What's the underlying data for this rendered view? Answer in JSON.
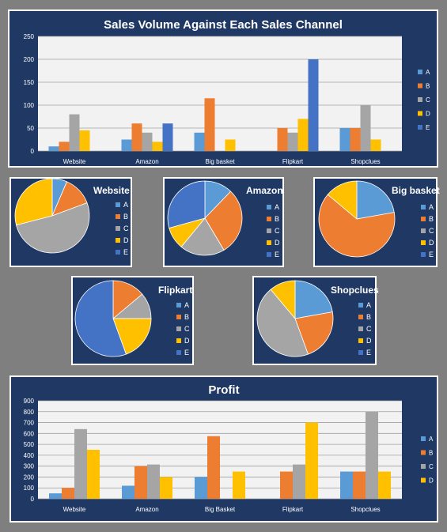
{
  "series_colors": {
    "A": "#5b9bd5",
    "B": "#ed7d31",
    "C": "#a5a5a5",
    "D": "#ffc000",
    "E": "#4472c4"
  },
  "chart_data": [
    {
      "type": "bar",
      "title": "Sales Volume Against Each Sales Channel",
      "categories": [
        "Website",
        "Amazon",
        "Big basket",
        "Flipkart",
        "Shopclues"
      ],
      "ylim": [
        0,
        250
      ],
      "yticks": [
        0,
        50,
        100,
        150,
        200,
        250
      ],
      "grid": true,
      "legend": "right",
      "series": [
        {
          "name": "A",
          "values": [
            10,
            25,
            40,
            0,
            50
          ]
        },
        {
          "name": "B",
          "values": [
            20,
            60,
            115,
            50,
            50
          ]
        },
        {
          "name": "C",
          "values": [
            80,
            40,
            0,
            40,
            100
          ]
        },
        {
          "name": "D",
          "values": [
            45,
            20,
            25,
            70,
            25
          ]
        },
        {
          "name": "E",
          "values": [
            0,
            60,
            0,
            200,
            0
          ]
        }
      ]
    },
    {
      "type": "pie",
      "title": "Website",
      "labels": [
        "A",
        "B",
        "C",
        "D",
        "E"
      ],
      "values": [
        10,
        20,
        80,
        45,
        0
      ],
      "legend": "right"
    },
    {
      "type": "pie",
      "title": "Amazon",
      "labels": [
        "A",
        "B",
        "C",
        "D",
        "E"
      ],
      "values": [
        25,
        60,
        40,
        20,
        60
      ],
      "legend": "right"
    },
    {
      "type": "pie",
      "title": "Big basket",
      "labels": [
        "A",
        "B",
        "C",
        "D",
        "E"
      ],
      "values": [
        40,
        115,
        0,
        25,
        0
      ],
      "legend": "right"
    },
    {
      "type": "pie",
      "title": "Flipkart",
      "labels": [
        "A",
        "B",
        "C",
        "D",
        "E"
      ],
      "values": [
        0,
        50,
        40,
        70,
        200
      ],
      "legend": "right"
    },
    {
      "type": "pie",
      "title": "Shopclues",
      "labels": [
        "A",
        "B",
        "C",
        "D",
        "E"
      ],
      "values": [
        50,
        50,
        100,
        25,
        0
      ],
      "legend": "right"
    },
    {
      "type": "bar",
      "title": "Profit",
      "categories": [
        "Website",
        "Amazon",
        "Big Basket",
        "Flipkart",
        "Shopclues"
      ],
      "ylim": [
        0,
        900
      ],
      "yticks": [
        0,
        100,
        200,
        300,
        400,
        500,
        600,
        700,
        800,
        900
      ],
      "grid": true,
      "legend": "right",
      "series": [
        {
          "name": "A",
          "values": [
            50,
            120,
            200,
            0,
            250
          ]
        },
        {
          "name": "B",
          "values": [
            100,
            300,
            575,
            250,
            250
          ]
        },
        {
          "name": "C",
          "values": [
            640,
            315,
            0,
            315,
            800
          ]
        },
        {
          "name": "D",
          "values": [
            450,
            200,
            250,
            700,
            250
          ]
        }
      ]
    }
  ]
}
